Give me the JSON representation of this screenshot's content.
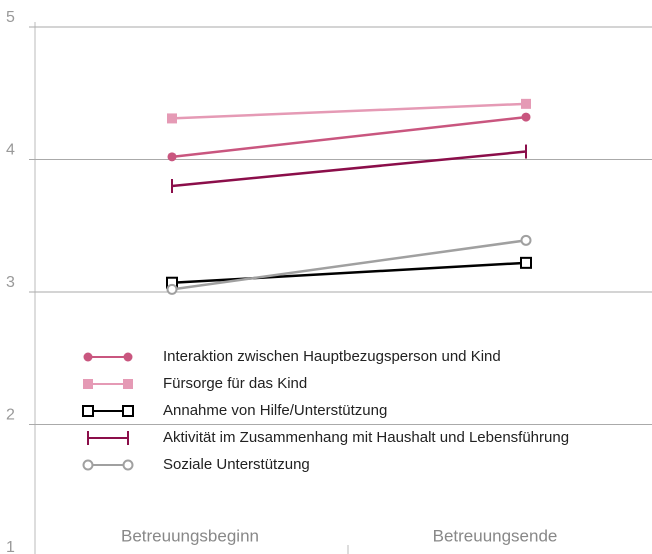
{
  "chart_data": {
    "type": "line",
    "categories": [
      "Betreuungsbeginn",
      "Betreuungsende"
    ],
    "series": [
      {
        "name": "Interaktion zwischen Hauptbezugsperson und Kind",
        "color": "#c9567f",
        "marker": "filled-circle",
        "values": [
          4.02,
          4.32
        ]
      },
      {
        "name": "Fürsorge für das Kind",
        "color": "#e59ab5",
        "marker": "filled-square",
        "values": [
          4.31,
          4.42
        ]
      },
      {
        "name": "Annahme von Hilfe/Unterstützung",
        "color": "#000000",
        "marker": "open-square",
        "values": [
          3.07,
          3.22
        ]
      },
      {
        "name": "Aktivität im Zusammenhang mit Haushalt und Lebensführung",
        "color": "#8b0e4a",
        "marker": "bar",
        "values": [
          3.8,
          4.06
        ]
      },
      {
        "name": "Soziale Unterstützung",
        "color": "#a0a0a0",
        "marker": "open-circle",
        "values": [
          3.02,
          3.39
        ]
      }
    ],
    "ylim": [
      1,
      5
    ],
    "yticks": [
      1,
      2,
      3,
      4,
      5
    ],
    "grid": true
  }
}
